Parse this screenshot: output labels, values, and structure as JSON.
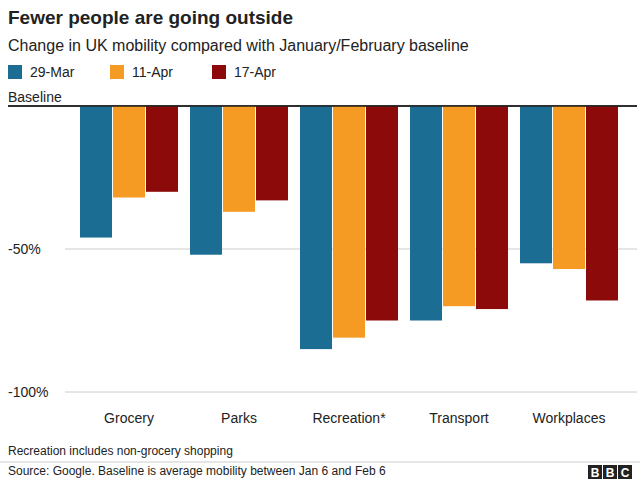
{
  "chart_data": {
    "type": "bar",
    "title": "Fewer people are going outside",
    "subtitle": "Change in UK mobility compared with January/February baseline",
    "categories": [
      "Grocery",
      "Parks",
      "Recreation*",
      "Transport",
      "Workplaces"
    ],
    "series": [
      {
        "name": "29-Mar",
        "color": "#1b6d93",
        "values": [
          -46,
          -52,
          -85,
          -75,
          -55
        ]
      },
      {
        "name": "11-Apr",
        "color": "#f59b23",
        "values": [
          -32,
          -37,
          -81,
          -70,
          -57
        ]
      },
      {
        "name": "17-Apr",
        "color": "#8c0a0a",
        "values": [
          -30,
          -33,
          -75,
          -71,
          -68
        ]
      }
    ],
    "ylim": [
      -100,
      0
    ],
    "yticks": [
      {
        "value": 0,
        "label": "Baseline"
      },
      {
        "value": -50,
        "label": "-50%"
      },
      {
        "value": -100,
        "label": "-100%"
      }
    ],
    "grid": true,
    "legend": "top",
    "annotations": [
      "Recreation includes non-grocery shopping"
    ],
    "source": "Source: Google. Baseline is average mobility between Jan 6 and Feb 6",
    "logo": "BBC"
  }
}
